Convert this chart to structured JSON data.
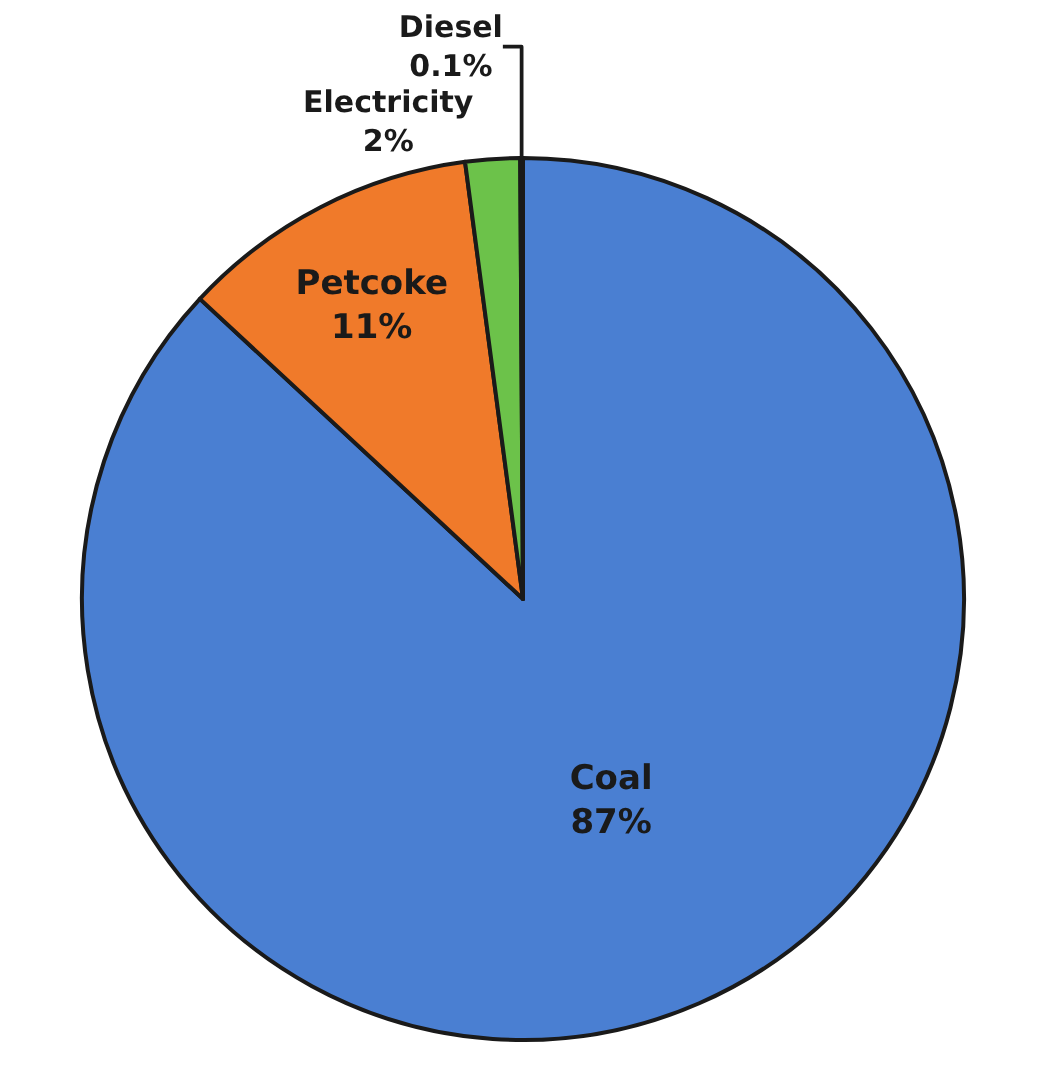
{
  "chart_data": {
    "type": "pie",
    "categories": [
      "Coal",
      "Petcoke",
      "Electricity",
      "Diesel"
    ],
    "values": [
      87,
      11,
      2,
      0.1
    ],
    "value_labels": [
      "87%",
      "11%",
      "2%",
      "0.1%"
    ],
    "colors": [
      "#4a7fd2",
      "#f07a2a",
      "#6cc24a",
      "#e8e070"
    ],
    "legend": false
  }
}
